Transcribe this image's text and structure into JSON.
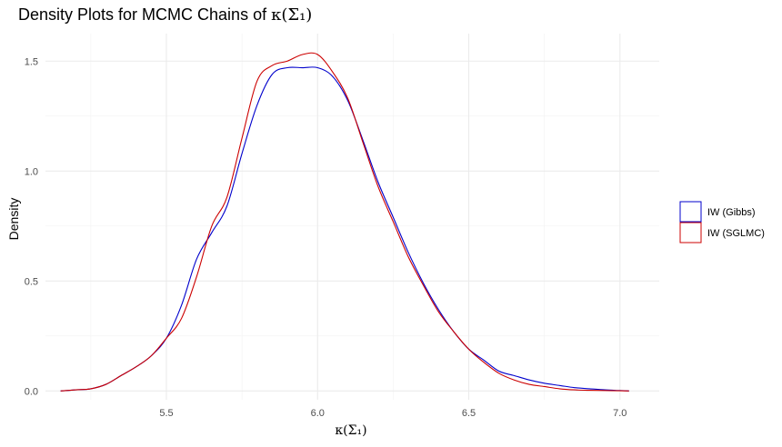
{
  "chart_data": {
    "type": "line",
    "title": "Density Plots for MCMC Chains of",
    "title_math": "κ(Σ₁)",
    "xlabel": "κ(Σ₁)",
    "ylabel": "Density",
    "xlim": [
      5.1,
      7.13
    ],
    "ylim": [
      -0.04,
      1.625
    ],
    "x_ticks": [
      5.5,
      6.0,
      6.5,
      7.0
    ],
    "x_tick_labels": [
      "5.5",
      "6.0",
      "6.5",
      "7.0"
    ],
    "y_ticks": [
      0.0,
      0.5,
      1.0,
      1.5
    ],
    "y_tick_labels": [
      "0.0",
      "0.5",
      "1.0",
      "1.5"
    ],
    "grid": true,
    "legend_position": "right",
    "series": [
      {
        "name": "IW (Gibbs)",
        "color": "#0000cc",
        "x": [
          5.15,
          5.2,
          5.25,
          5.3,
          5.35,
          5.4,
          5.45,
          5.5,
          5.55,
          5.6,
          5.65,
          5.7,
          5.75,
          5.8,
          5.85,
          5.9,
          5.95,
          6.0,
          6.05,
          6.1,
          6.15,
          6.2,
          6.25,
          6.3,
          6.35,
          6.4,
          6.45,
          6.5,
          6.55,
          6.6,
          6.65,
          6.7,
          6.75,
          6.8,
          6.85,
          6.9,
          6.95,
          7.0,
          7.03
        ],
        "y": [
          0.0,
          0.005,
          0.01,
          0.03,
          0.07,
          0.11,
          0.16,
          0.24,
          0.39,
          0.6,
          0.72,
          0.84,
          1.08,
          1.3,
          1.44,
          1.47,
          1.47,
          1.47,
          1.43,
          1.32,
          1.14,
          0.95,
          0.79,
          0.63,
          0.49,
          0.37,
          0.27,
          0.19,
          0.14,
          0.09,
          0.07,
          0.05,
          0.035,
          0.025,
          0.015,
          0.01,
          0.005,
          0.002,
          0.0
        ]
      },
      {
        "name": "IW (SGLMC)",
        "color": "#cc0000",
        "x": [
          5.15,
          5.2,
          5.25,
          5.3,
          5.35,
          5.4,
          5.45,
          5.5,
          5.55,
          5.6,
          5.65,
          5.7,
          5.75,
          5.8,
          5.85,
          5.9,
          5.95,
          6.0,
          6.05,
          6.1,
          6.15,
          6.2,
          6.25,
          6.3,
          6.35,
          6.4,
          6.45,
          6.5,
          6.55,
          6.6,
          6.65,
          6.7,
          6.75,
          6.8,
          6.85,
          6.9,
          6.95,
          7.0,
          7.03
        ],
        "y": [
          0.0,
          0.005,
          0.01,
          0.03,
          0.07,
          0.11,
          0.16,
          0.24,
          0.33,
          0.52,
          0.75,
          0.88,
          1.15,
          1.41,
          1.48,
          1.5,
          1.53,
          1.53,
          1.45,
          1.33,
          1.13,
          0.93,
          0.77,
          0.61,
          0.48,
          0.36,
          0.27,
          0.19,
          0.13,
          0.08,
          0.05,
          0.03,
          0.02,
          0.01,
          0.005,
          0.003,
          0.002,
          0.001,
          0.0
        ]
      }
    ]
  }
}
